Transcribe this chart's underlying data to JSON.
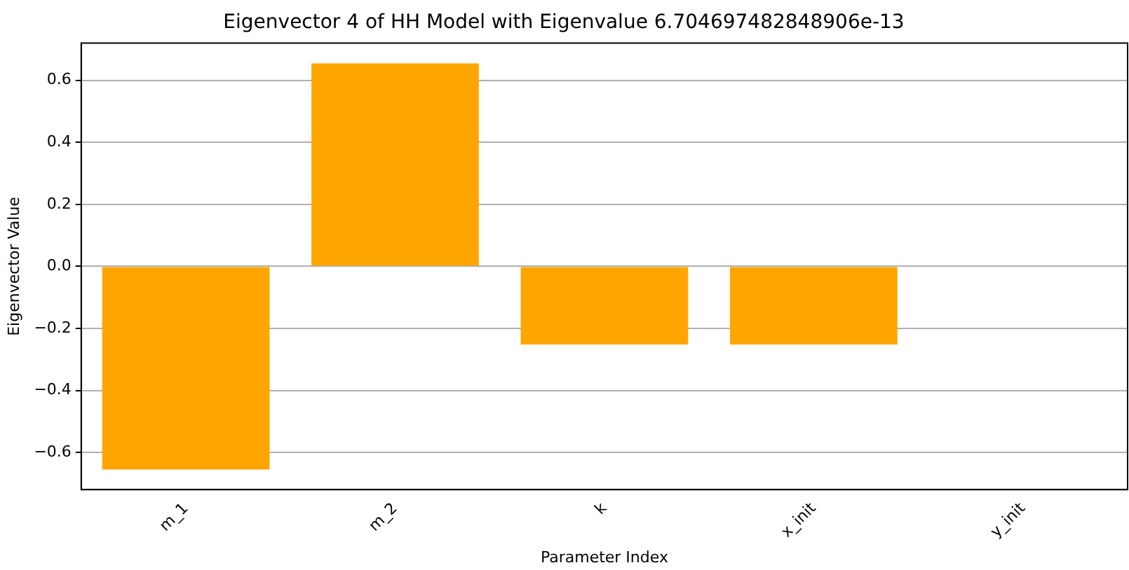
{
  "chart_data": {
    "type": "bar",
    "title": "Eigenvector 4 of HH Model with Eigenvalue 6.704697482848906e-13",
    "xlabel": "Parameter Index",
    "ylabel": "Eigenvector Value",
    "categories": [
      "m_1",
      "m_2",
      "k",
      "x_init",
      "y_init"
    ],
    "values": [
      -0.655,
      0.655,
      -0.252,
      -0.252,
      0
    ],
    "color": "#ffa500",
    "ylim": [
      -0.72,
      0.72
    ],
    "yticks": [
      {
        "value": -0.6,
        "label": "−0.6"
      },
      {
        "value": -0.4,
        "label": "−0.4"
      },
      {
        "value": -0.2,
        "label": "−0.2"
      },
      {
        "value": 0,
        "label": "0.0"
      },
      {
        "value": 0.2,
        "label": "0.2"
      },
      {
        "value": 0.4,
        "label": "0.4"
      },
      {
        "value": 0.6,
        "label": "0.6"
      }
    ],
    "grid": "y",
    "legend": false
  }
}
